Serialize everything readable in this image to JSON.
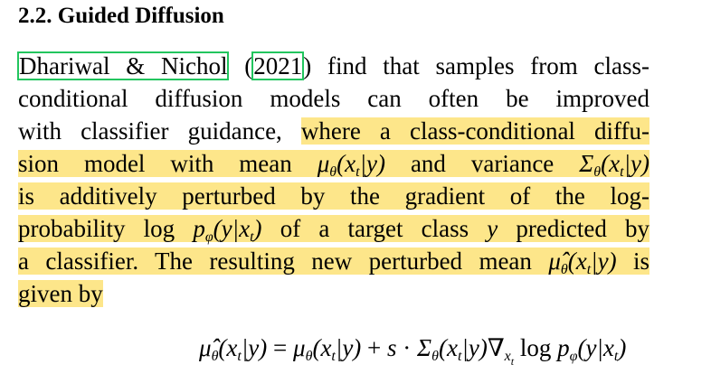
{
  "heading": "2.2. Guided Diffusion",
  "citation": {
    "authors": "Dhariwal & Nichol",
    "year": "2021"
  },
  "lines": [
    " find that samples from class-",
    "conditional diffusion models can often be improved",
    "with classifier guidance, ",
    "where a class-conditional diffu-",
    "sion model with mean ",
    " and variance ",
    "is additively perturbed by the gradient of the log-",
    "probability ",
    " of a target class ",
    " predicted by",
    "a classifier. The resulting new perturbed mean ",
    " is",
    "given by"
  ],
  "math": {
    "mu": "μ",
    "theta": "θ",
    "Sigma": "Σ",
    "x": "x",
    "t": "t",
    "y": "y",
    "log": "log",
    "p": "p",
    "phi": "φ",
    "s": "s",
    "nabla": "∇",
    "eq_lhs": "μ̂",
    "equals": " = ",
    "plus": " + ",
    "cdot": " · "
  },
  "colors": {
    "highlight": "#fde68a",
    "citation_box": "#22c55e"
  }
}
